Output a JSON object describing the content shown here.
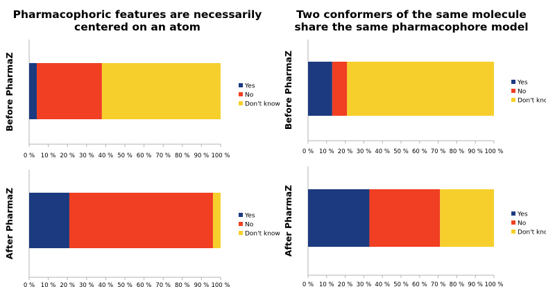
{
  "colors": {
    "yes": "#1b3a80",
    "no": "#f03f22",
    "dontknow": "#f6cf2c",
    "axis": "#b3b3b3"
  },
  "chart_data": [
    {
      "type": "bar",
      "orientation": "horizontal",
      "stacked": "percent",
      "title": "Pharmacophoric features are necessarily\ncentered on an atom",
      "ylabel": "Before PharmaZ",
      "x_ticks": [
        "0 %",
        "10 %",
        "20 %",
        "30 %",
        "40 %",
        "50 %",
        "60 %",
        "70 %",
        "80 %",
        "90 %",
        "100 %"
      ],
      "xlim": [
        0,
        100
      ],
      "grid": false,
      "legend_position": "right",
      "series": [
        {
          "name": "Yes",
          "values": [
            4
          ]
        },
        {
          "name": "No",
          "values": [
            34
          ]
        },
        {
          "name": "Don't know",
          "values": [
            62
          ]
        }
      ]
    },
    {
      "type": "bar",
      "orientation": "horizontal",
      "stacked": "percent",
      "title": "",
      "ylabel": "After PharmaZ",
      "x_ticks": [
        "0 %",
        "10 %",
        "20 %",
        "30 %",
        "40 %",
        "50 %",
        "60 %",
        "70 %",
        "80 %",
        "90 %",
        "100 %"
      ],
      "xlim": [
        0,
        100
      ],
      "grid": false,
      "legend_position": "right",
      "series": [
        {
          "name": "Yes",
          "values": [
            21
          ]
        },
        {
          "name": "No",
          "values": [
            75
          ]
        },
        {
          "name": "Don't know",
          "values": [
            4
          ]
        }
      ]
    },
    {
      "type": "bar",
      "orientation": "horizontal",
      "stacked": "percent",
      "title": "Two conformers of the same molecule\nshare the same pharmacophore model",
      "ylabel": "Before PharmaZ",
      "x_ticks": [
        "0 %",
        "10 %",
        "20 %",
        "30 %",
        "40 %",
        "50 %",
        "60 %",
        "70 %",
        "80 %",
        "90 %",
        "100 %"
      ],
      "xlim": [
        0,
        100
      ],
      "grid": false,
      "legend_position": "right",
      "series": [
        {
          "name": "Yes",
          "values": [
            13
          ]
        },
        {
          "name": "No",
          "values": [
            8
          ]
        },
        {
          "name": "Don't know",
          "values": [
            79
          ]
        }
      ]
    },
    {
      "type": "bar",
      "orientation": "horizontal",
      "stacked": "percent",
      "title": "",
      "ylabel": "After PharmaZ",
      "x_ticks": [
        "0 %",
        "10 %",
        "20 %",
        "30 %",
        "40 %",
        "50 %",
        "60 %",
        "70 %",
        "80 %",
        "90 %",
        "100 %"
      ],
      "xlim": [
        0,
        100
      ],
      "grid": false,
      "legend_position": "right",
      "series": [
        {
          "name": "Yes",
          "values": [
            33
          ]
        },
        {
          "name": "No",
          "values": [
            38
          ]
        },
        {
          "name": "Don't know",
          "values": [
            29
          ]
        }
      ]
    }
  ]
}
